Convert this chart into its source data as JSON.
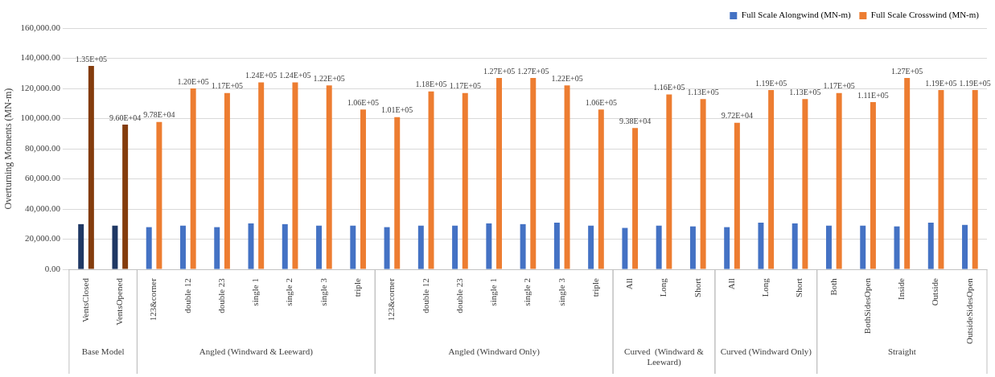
{
  "chart_data": {
    "type": "bar",
    "ylabel": "Overturning Moments (MN-m)",
    "categories": [
      "VentsClosed",
      "VentsOpened",
      "123&corner",
      "double 12",
      "double 23",
      "single 1",
      "single 2",
      "single 3",
      "triple",
      "123&corner",
      "double 12",
      "double 23",
      "single 1",
      "single 2",
      "single 3",
      "triple",
      "All",
      "Long",
      "Short",
      "All",
      "Long",
      "Short",
      "Both",
      "BothSidesOpen",
      "Inside",
      "Outside",
      "OutsideSidesOpen"
    ],
    "series": [
      {
        "name": "Full Scale Alongwind (MN-m)",
        "color": "#4472c4",
        "colors": [
          "#1f3864",
          "#1f3864",
          "#4472c4",
          "#4472c4",
          "#4472c4",
          "#4472c4",
          "#4472c4",
          "#4472c4",
          "#4472c4",
          "#4472c4",
          "#4472c4",
          "#4472c4",
          "#4472c4",
          "#4472c4",
          "#4472c4",
          "#4472c4",
          "#4472c4",
          "#4472c4",
          "#4472c4",
          "#4472c4",
          "#4472c4",
          "#4472c4",
          "#4472c4",
          "#4472c4",
          "#4472c4",
          "#4472c4",
          "#4472c4"
        ],
        "values": [
          30000,
          29000,
          28000,
          29000,
          28000,
          30500,
          30000,
          29000,
          29000,
          28000,
          29000,
          29000,
          30500,
          30000,
          31000,
          29000,
          27500,
          29000,
          28500,
          28000,
          31000,
          30500,
          29000,
          29000,
          28500,
          31000,
          29500
        ]
      },
      {
        "name": "Full Scale Crosswind (MN-m)",
        "color": "#ed7d31",
        "colors": [
          "#843c0c",
          "#843c0c",
          "#ed7d31",
          "#ed7d31",
          "#ed7d31",
          "#ed7d31",
          "#ed7d31",
          "#ed7d31",
          "#ed7d31",
          "#ed7d31",
          "#ed7d31",
          "#ed7d31",
          "#ed7d31",
          "#ed7d31",
          "#ed7d31",
          "#ed7d31",
          "#ed7d31",
          "#ed7d31",
          "#ed7d31",
          "#ed7d31",
          "#ed7d31",
          "#ed7d31",
          "#ed7d31",
          "#ed7d31",
          "#ed7d31",
          "#ed7d31",
          "#ed7d31"
        ],
        "values": [
          135000,
          96000,
          97800,
          120000,
          117000,
          124000,
          124000,
          122000,
          106000,
          101000,
          118000,
          117000,
          127000,
          127000,
          122000,
          106000,
          93800,
          116000,
          113000,
          97200,
          119000,
          113000,
          117000,
          111000,
          127000,
          119000,
          119000
        ],
        "value_labels": [
          "1.35E+05",
          "9.60E+04",
          "9.78E+04",
          "1.20E+05",
          "1.17E+05",
          "1.24E+05",
          "1.24E+05",
          "1.22E+05",
          "1.06E+05",
          "1.01E+05",
          "1.18E+05",
          "1.17E+05",
          "1.27E+05",
          "1.27E+05",
          "1.22E+05",
          "1.06E+05",
          "9.38E+04",
          "1.16E+05",
          "1.13E+05",
          "9.72E+04",
          "1.19E+05",
          "1.13E+05",
          "1.17E+05",
          "1.11E+05",
          "1.27E+05",
          "1.19E+05",
          "1.19E+05"
        ]
      }
    ],
    "ylim": [
      0,
      160000
    ],
    "yticks": [
      {
        "value": 0,
        "label": "0.00"
      },
      {
        "value": 20000,
        "label": "20,000.00"
      },
      {
        "value": 40000,
        "label": "40,000.00"
      },
      {
        "value": 60000,
        "label": "60,000.00"
      },
      {
        "value": 80000,
        "label": "80,000.00"
      },
      {
        "value": 100000,
        "label": "100,000.00"
      },
      {
        "value": 120000,
        "label": "120,000.00"
      },
      {
        "value": 140000,
        "label": "140,000.00"
      },
      {
        "value": 160000,
        "label": "160,000.00"
      }
    ],
    "annotations": [
      "Base Model",
      "Angled (Windward & Leeward)",
      "Angled (Windward Only)",
      "Curved  (Windward & Leeward)",
      "Curved (Windward Only)",
      "Straight"
    ],
    "grid": "y",
    "legend": "top right"
  }
}
